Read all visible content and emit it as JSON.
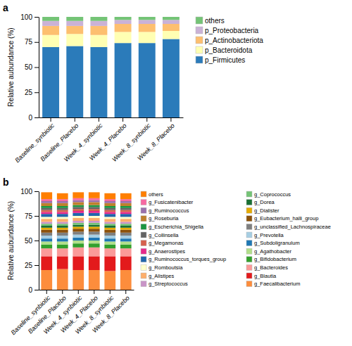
{
  "chart_data": [
    {
      "type": "bar",
      "stacked": true,
      "title": "a",
      "y_label": "Relative aubundance (%)",
      "categories": [
        "Baseline_synbiotic",
        "Baseline_Placebo",
        "Week_4_synbiotic",
        "Week_4_Placebo",
        "Week_8_synbiotic",
        "Week_8_Placebo"
      ],
      "series": [
        {
          "name": "p_Firmicutes",
          "color": "#2b7bba",
          "values": [
            70,
            71,
            70,
            74,
            74,
            78
          ]
        },
        {
          "name": "p_Bacteroidota",
          "color": "#ffffb3",
          "values": [
            12,
            12,
            12,
            11,
            11,
            8
          ]
        },
        {
          "name": "p_Actinobacteriota",
          "color": "#fdbf6f",
          "values": [
            9,
            8,
            9,
            8,
            8,
            7
          ]
        },
        {
          "name": "p_Proteobacteria",
          "color": "#cab2d6",
          "values": [
            5,
            5,
            5,
            4,
            4,
            4
          ]
        },
        {
          "name": "others",
          "color": "#74c476",
          "values": [
            4,
            4,
            4,
            3,
            3,
            3
          ]
        }
      ],
      "ylim": [
        0,
        100
      ],
      "yticks": [
        0,
        25,
        50,
        75,
        100
      ],
      "grid": false,
      "legend": "right"
    },
    {
      "type": "bar",
      "stacked": true,
      "title": "b",
      "y_label": "Relative aubundance (%)",
      "categories": [
        "Baseline_synbiotic",
        "Baseline_Placebo",
        "Week_4_synbiotic",
        "Week_4_Placebo",
        "Week_8_synbiotic",
        "Week_8_Placebo"
      ],
      "series": [
        {
          "name": "g_Faecalibacterium",
          "color": "#fd8d3c",
          "values": [
            20,
            21,
            20,
            20,
            19,
            20
          ]
        },
        {
          "name": "g_Blautia",
          "color": "#e31a1c",
          "values": [
            14,
            13,
            14,
            14,
            15,
            14
          ]
        },
        {
          "name": "g_Bacteroides",
          "color": "#fb9a99",
          "values": [
            8,
            8,
            9,
            9,
            8,
            8
          ]
        },
        {
          "name": "g_Bifidobacterium",
          "color": "#33a02c",
          "values": [
            4,
            4,
            4,
            4,
            4,
            4
          ]
        },
        {
          "name": "g_Agathobacter",
          "color": "#b2df8a",
          "values": [
            3,
            3,
            3,
            3,
            3,
            3
          ]
        },
        {
          "name": "g_Subdoligranulum",
          "color": "#1f78b4",
          "values": [
            3,
            3,
            3,
            3,
            3,
            3
          ]
        },
        {
          "name": "g_Prevotella",
          "color": "#a6cee3",
          "values": [
            3,
            3,
            3,
            3,
            3,
            3
          ]
        },
        {
          "name": "g_unclassified_Lachnospiraceae",
          "color": "#7f7f7f",
          "values": [
            3,
            3,
            3,
            3,
            3,
            3
          ]
        },
        {
          "name": "g_Eubacterium_halli_group",
          "color": "#8c510a",
          "values": [
            3,
            3,
            3,
            3,
            3,
            3
          ]
        },
        {
          "name": "g_Dialister",
          "color": "#e6ab02",
          "values": [
            2,
            2,
            2,
            2,
            2,
            2
          ]
        },
        {
          "name": "g_Dorea",
          "color": "#1a7034",
          "values": [
            2,
            2,
            2,
            2,
            2,
            2
          ]
        },
        {
          "name": "g_Coprococcus",
          "color": "#74c476",
          "values": [
            2,
            2,
            2,
            2,
            2,
            2
          ]
        },
        {
          "name": "g_Streptococcus",
          "color": "#c994c7",
          "values": [
            2,
            2,
            2,
            2,
            2,
            2
          ]
        },
        {
          "name": "g_Alistipes",
          "color": "#fdae6b",
          "values": [
            3,
            3,
            3,
            3,
            3,
            3
          ]
        },
        {
          "name": "g_Romboutsia",
          "color": "#ffffcc",
          "values": [
            2,
            2,
            2,
            2,
            2,
            2
          ]
        },
        {
          "name": "g_Ruminococcus_torques_group",
          "color": "#2166ac",
          "values": [
            3,
            3,
            3,
            3,
            3,
            3
          ]
        },
        {
          "name": "g_Anaerostipes",
          "color": "#e7298a",
          "values": [
            2,
            2,
            2,
            2,
            2,
            2
          ]
        },
        {
          "name": "g_Megamonas",
          "color": "#d6604d",
          "values": [
            2,
            2,
            2,
            2,
            2,
            2
          ]
        },
        {
          "name": "g_Collinsella",
          "color": "#636363",
          "values": [
            2,
            2,
            2,
            2,
            2,
            2
          ]
        },
        {
          "name": "g_Escherichia_Shigella",
          "color": "#1a9641",
          "values": [
            2,
            2,
            2,
            2,
            2,
            2
          ]
        },
        {
          "name": "g_Roseburia",
          "color": "#bf812d",
          "values": [
            3,
            3,
            3,
            3,
            3,
            3
          ]
        },
        {
          "name": "g_Ruminococcus",
          "color": "#9970ab",
          "values": [
            2,
            2,
            2,
            2,
            2,
            2
          ]
        },
        {
          "name": "g_Fusicatenibacter",
          "color": "#f768a1",
          "values": [
            2,
            2,
            2,
            2,
            2,
            2
          ]
        },
        {
          "name": "others",
          "color": "#ff7f00",
          "values": [
            7,
            6,
            6,
            6,
            6,
            6
          ]
        }
      ],
      "ylim": [
        0,
        100
      ],
      "yticks": [
        0,
        25,
        50,
        75,
        100
      ],
      "grid": false,
      "legend": "right"
    }
  ]
}
